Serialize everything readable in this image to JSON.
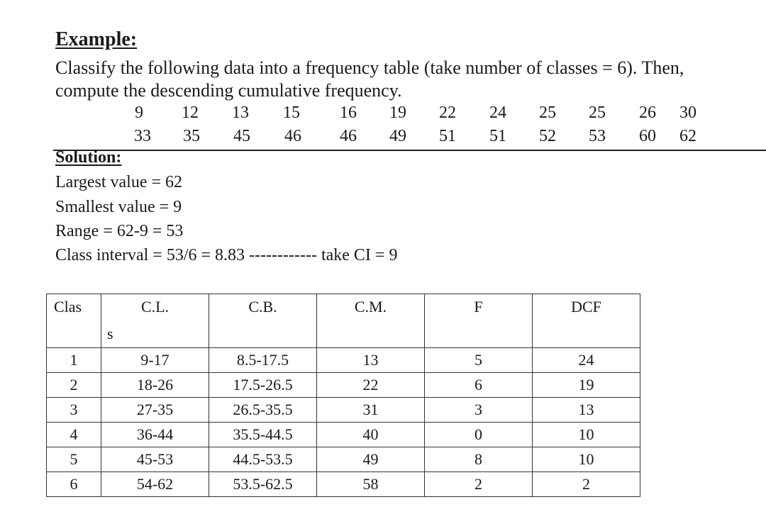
{
  "example": {
    "heading": "Example:",
    "line1": "Classify the following data into a frequency table (take number of classes = 6). Then,",
    "line2": "compute the descending cumulative frequency.",
    "data_row1": [
      "9",
      "12",
      "13",
      "15",
      "16",
      "19",
      "22",
      "24",
      "25",
      "25",
      "26",
      "30"
    ],
    "data_row2": [
      "33",
      "35",
      "45",
      "46",
      "46",
      "49",
      "51",
      "51",
      "52",
      "53",
      "60",
      "62"
    ]
  },
  "solution": {
    "heading": "Solution:",
    "largest": "Largest value = 62",
    "smallest": "Smallest value = 9",
    "range": "Range = 62-9 = 53",
    "interval": "Class interval = 53/6 = 8.83 ------------ take CI = 9"
  },
  "table": {
    "headers": {
      "class_part1": "Clas",
      "class_part2": "s",
      "cl": "C.L.",
      "cb": "C.B.",
      "cm": "C.M.",
      "f": "F",
      "dcf": "DCF"
    },
    "rows": [
      [
        "1",
        "9-17",
        "8.5-17.5",
        "13",
        "5",
        "24"
      ],
      [
        "2",
        "18-26",
        "17.5-26.5",
        "22",
        "6",
        "19"
      ],
      [
        "3",
        "27-35",
        "26.5-35.5",
        "31",
        "3",
        "13"
      ],
      [
        "4",
        "36-44",
        "35.5-44.5",
        "40",
        "0",
        "10"
      ],
      [
        "5",
        "45-53",
        "44.5-53.5",
        "49",
        "8",
        "10"
      ],
      [
        "6",
        "54-62",
        "53.5-62.5",
        "58",
        "2",
        "2"
      ]
    ]
  }
}
